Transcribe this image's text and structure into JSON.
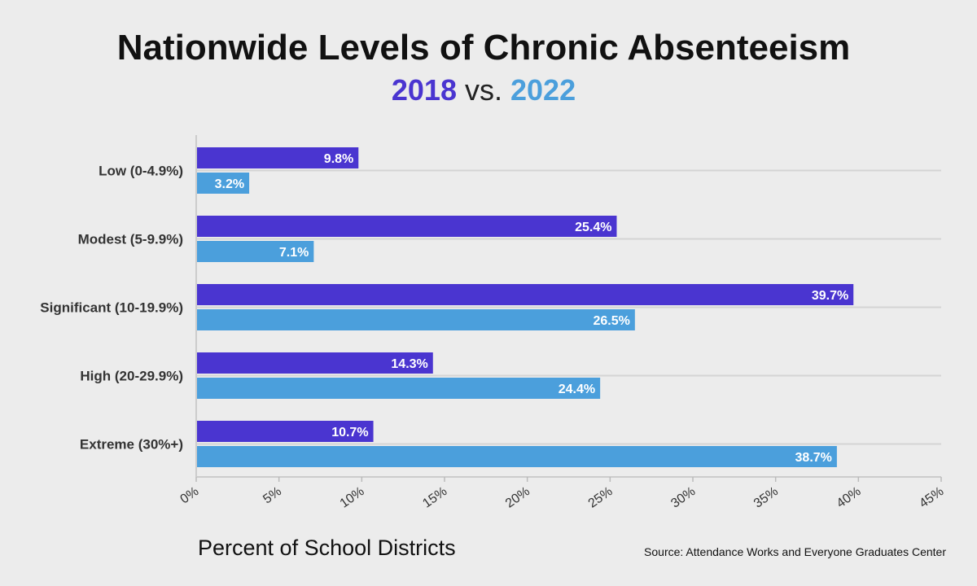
{
  "chart_data": {
    "type": "bar",
    "orientation": "horizontal",
    "title": "Nationwide Levels of Chronic Absenteeism",
    "subtitle": {
      "part1": "2018",
      "part2": "vs.",
      "part3": "2022"
    },
    "xlabel": "Percent of School Districts",
    "source": "Source: Attendance Works and Everyone Graduates Center",
    "categories": [
      "Low (0-4.9%)",
      "Modest (5-9.9%)",
      "Significant (10-19.9%)",
      "High (20-29.9%)",
      "Extreme (30%+)"
    ],
    "series": [
      {
        "name": "2018",
        "color": "#4a35d0",
        "values": [
          9.8,
          25.4,
          39.7,
          14.3,
          10.7
        ],
        "labels": [
          "9.8%",
          "25.4%",
          "39.7%",
          "14.3%",
          "10.7%"
        ]
      },
      {
        "name": "2022",
        "color": "#4b9fdc",
        "values": [
          3.2,
          7.1,
          26.5,
          24.4,
          38.7
        ],
        "labels": [
          "3.2%",
          "7.1%",
          "26.5%",
          "24.4%",
          "38.7%"
        ]
      }
    ],
    "xlim": [
      0,
      45
    ],
    "ticks": [
      0,
      5,
      10,
      15,
      20,
      25,
      30,
      35,
      40,
      45
    ],
    "tick_labels": [
      "0%",
      "5%",
      "10%",
      "15%",
      "20%",
      "25%",
      "30%",
      "35%",
      "40%",
      "45%"
    ],
    "grid": "horizontal category separators",
    "legend": "none (series colors shown in subtitle)"
  }
}
